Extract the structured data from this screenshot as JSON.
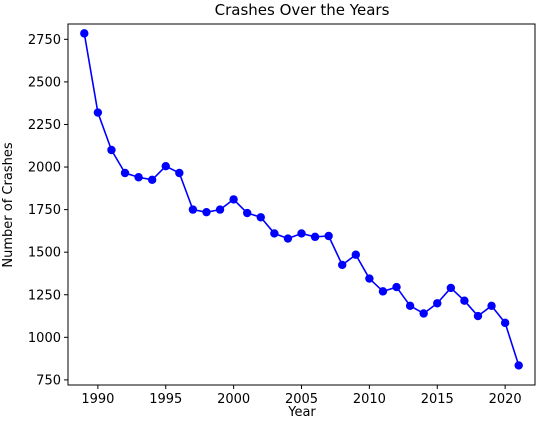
{
  "chart_data": {
    "type": "line",
    "title": "Crashes Over the Years",
    "xlabel": "Year",
    "ylabel": "Number of Crashes",
    "xlim": [
      1987.8,
      2022.2
    ],
    "ylim": [
      720,
      2840
    ],
    "xticks": [
      1990,
      1995,
      2000,
      2005,
      2010,
      2015,
      2020
    ],
    "yticks": [
      750,
      1000,
      1250,
      1500,
      1750,
      2000,
      2250,
      2500,
      2750
    ],
    "grid": false,
    "legend": "none",
    "series": [
      {
        "color": "#0000ff",
        "marker": "circle",
        "x": [
          1989,
          1990,
          1991,
          1992,
          1993,
          1994,
          1995,
          1996,
          1997,
          1998,
          1999,
          2000,
          2001,
          2002,
          2003,
          2004,
          2005,
          2006,
          2007,
          2008,
          2009,
          2010,
          2011,
          2012,
          2013,
          2014,
          2015,
          2016,
          2017,
          2018,
          2019,
          2020,
          2021
        ],
        "y": [
          2785,
          2320,
          2100,
          1965,
          1940,
          1925,
          2005,
          1965,
          1750,
          1735,
          1750,
          1810,
          1730,
          1705,
          1610,
          1580,
          1610,
          1590,
          1595,
          1425,
          1485,
          1345,
          1270,
          1295,
          1185,
          1140,
          1200,
          1290,
          1215,
          1125,
          1185,
          1085,
          835
        ]
      }
    ]
  }
}
